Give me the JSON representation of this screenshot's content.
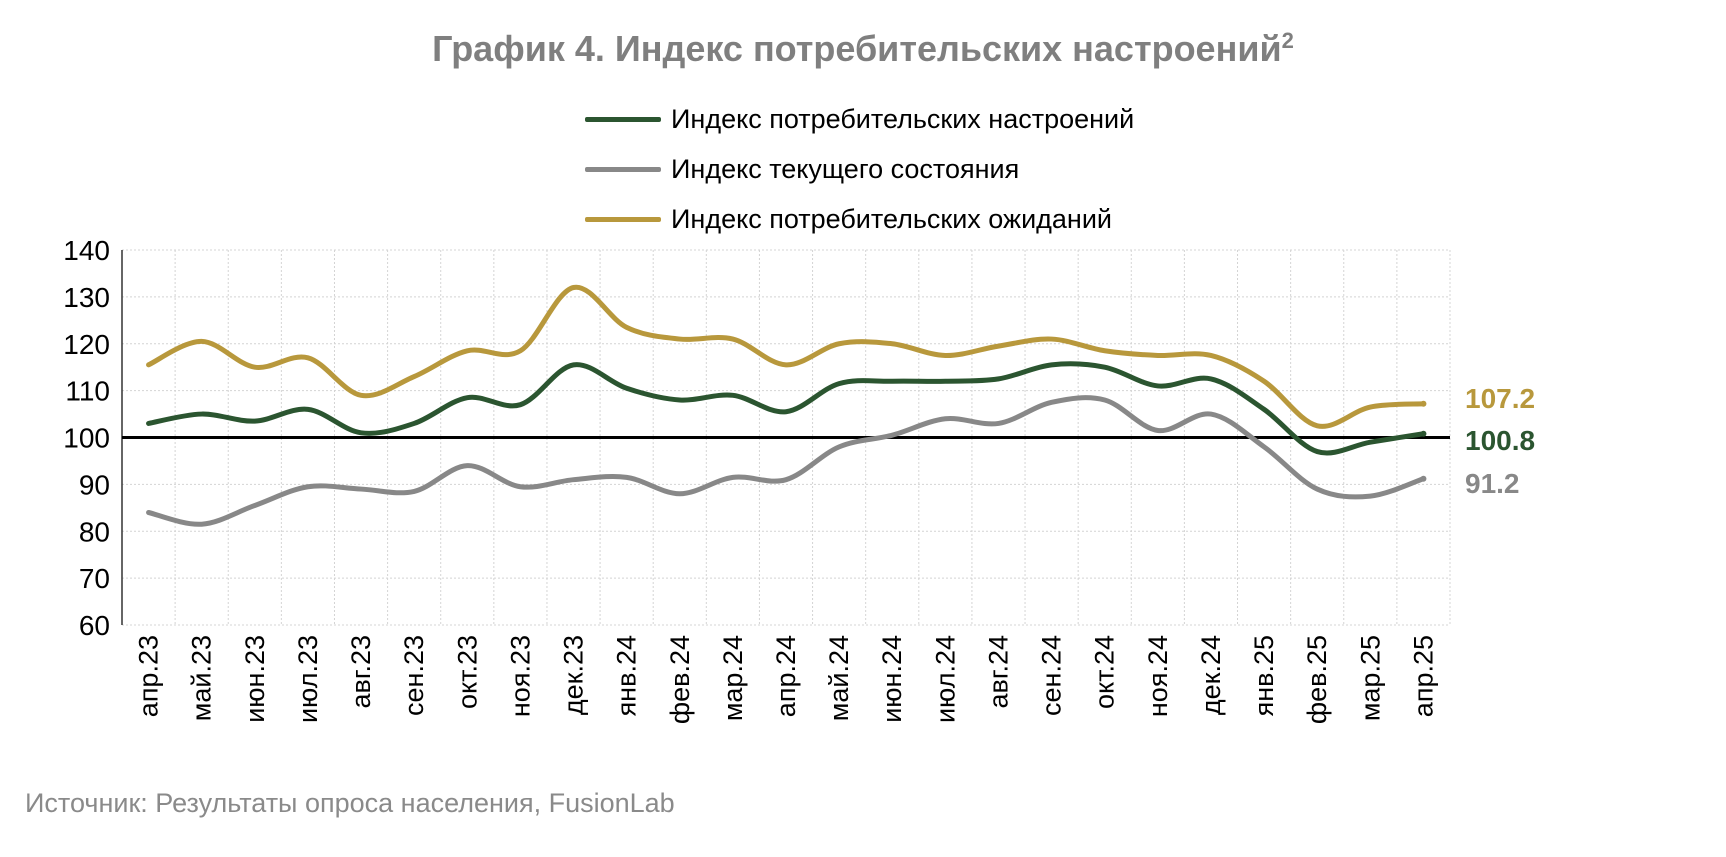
{
  "chart_data": {
    "type": "line",
    "title": "График 4. Индекс потребительских настроений",
    "title_footnote": "2",
    "categories": [
      "апр.23",
      "май.23",
      "июн.23",
      "июл.23",
      "авг.23",
      "сен.23",
      "окт.23",
      "ноя.23",
      "дек.23",
      "янв.24",
      "фев.24",
      "мар.24",
      "апр.24",
      "май.24",
      "июн.24",
      "июл.24",
      "авг.24",
      "сен.24",
      "окт.24",
      "ноя.24",
      "дек.24",
      "янв.25",
      "фев.25",
      "мар.25",
      "апр.25"
    ],
    "ylim": [
      60,
      140
    ],
    "yticks": [
      60,
      70,
      80,
      90,
      100,
      110,
      120,
      130,
      140
    ],
    "reference_line": 100,
    "grid": true,
    "legend_position": "top",
    "series": [
      {
        "name": "Индекс потребительских настроений",
        "color": "#2b5530",
        "values": [
          103,
          105,
          103.5,
          106,
          101,
          103,
          108.5,
          107,
          115.5,
          110.5,
          108,
          109,
          105.5,
          111.5,
          112,
          112,
          112.5,
          115.5,
          115,
          111,
          112.5,
          106,
          97,
          99,
          100.8
        ],
        "end_label": "100.8"
      },
      {
        "name": "Индекс текущего состояния",
        "color": "#888888",
        "values": [
          84,
          81.5,
          85.5,
          89.5,
          89,
          88.5,
          94,
          89.5,
          91,
          91.5,
          88,
          91.5,
          91,
          98,
          100.5,
          104,
          103,
          107.5,
          108,
          101.5,
          105,
          98,
          89,
          87.5,
          91.2
        ],
        "end_label": "91.2"
      },
      {
        "name": "Индекс потребительских ожиданий",
        "color": "#b8983c",
        "values": [
          115.5,
          120.5,
          115,
          117,
          109,
          113,
          118.5,
          118.5,
          132,
          123.5,
          121,
          121,
          115.5,
          120,
          120,
          117.5,
          119.5,
          121,
          118.5,
          117.5,
          117.5,
          112,
          102.5,
          106.5,
          107.2
        ],
        "end_label": "107.2"
      }
    ]
  },
  "source": "Источник: Результаты опроса населения, FusionLab"
}
